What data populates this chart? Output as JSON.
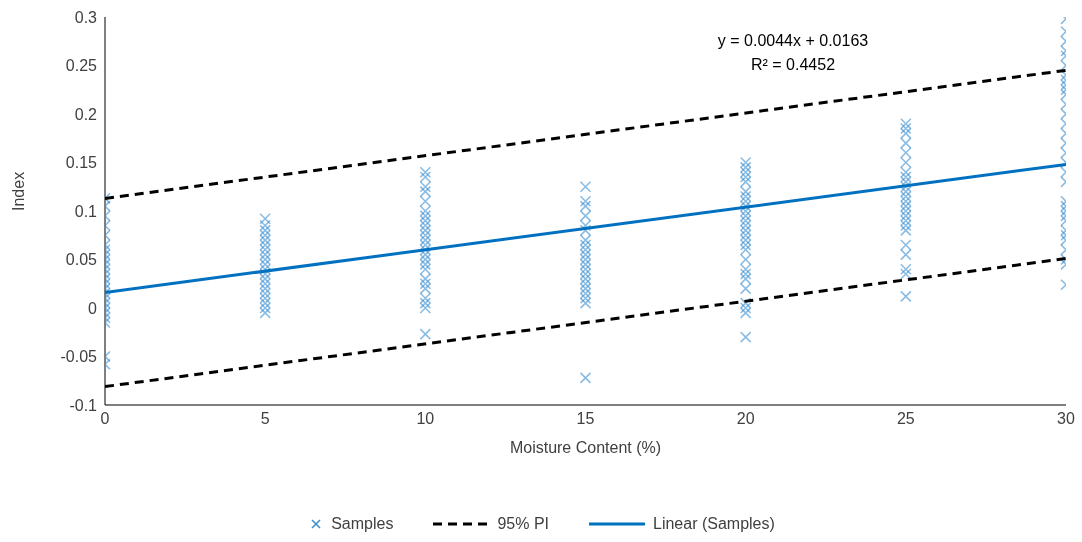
{
  "chart_data": {
    "type": "scatter",
    "xlabel": "Moisture Content (%)",
    "ylabel": "Index",
    "xlim": [
      0,
      30
    ],
    "xticks": [
      0,
      5,
      10,
      15,
      20,
      25,
      30
    ],
    "ylim": [
      -0.1,
      0.3
    ],
    "yticks": [
      -0.1,
      -0.05,
      0,
      0.05,
      0.1,
      0.15,
      0.2,
      0.25,
      0.3
    ],
    "grid": false,
    "legend": "bottom",
    "annotations": [
      "y = 0.0044x + 0.0163",
      "R² = 0.4452"
    ],
    "series": [
      {
        "name": "Samples",
        "marker": "cross",
        "color": "#3d8fd1",
        "x": [
          0,
          0,
          0,
          0,
          0,
          0,
          0,
          0,
          0,
          0,
          0,
          0,
          0,
          0,
          0,
          0,
          0,
          0,
          0,
          0,
          0,
          0,
          0,
          0,
          5,
          5,
          5,
          5,
          5,
          5,
          5,
          5,
          5,
          5,
          5,
          5,
          5,
          5,
          5,
          5,
          5,
          5,
          5,
          5,
          10,
          10,
          10,
          10,
          10,
          10,
          10,
          10,
          10,
          10,
          10,
          10,
          10,
          10,
          10,
          10,
          10,
          10,
          10,
          10,
          10,
          10,
          10,
          10,
          10,
          15,
          15,
          15,
          15,
          15,
          15,
          15,
          15,
          15,
          15,
          15,
          15,
          15,
          15,
          15,
          15,
          15,
          15,
          15,
          15,
          15,
          20,
          20,
          20,
          20,
          20,
          20,
          20,
          20,
          20,
          20,
          20,
          20,
          20,
          20,
          20,
          20,
          20,
          20,
          20,
          20,
          20,
          20,
          20,
          20,
          20,
          20,
          20,
          25,
          25,
          25,
          25,
          25,
          25,
          25,
          25,
          25,
          25,
          25,
          25,
          25,
          25,
          25,
          25,
          25,
          25,
          25,
          25,
          25,
          25,
          25,
          25,
          30,
          30,
          30,
          30,
          30,
          30,
          30,
          30,
          30,
          30,
          30,
          30,
          30,
          30,
          30,
          30,
          30,
          30,
          30,
          30,
          30,
          30,
          30,
          30,
          30,
          30,
          30,
          30,
          30,
          30,
          30,
          30
        ],
        "values": [
          0.113,
          0.105,
          0.095,
          0.085,
          0.075,
          0.065,
          0.06,
          0.055,
          0.05,
          0.045,
          0.04,
          0.035,
          0.03,
          0.025,
          0.02,
          0.015,
          0.01,
          0.005,
          0,
          -0.005,
          -0.01,
          -0.015,
          -0.05,
          -0.058,
          0.092,
          0.085,
          0.08,
          0.075,
          0.07,
          0.065,
          0.06,
          0.055,
          0.05,
          0.045,
          0.04,
          0.035,
          0.03,
          0.025,
          0.02,
          0.015,
          0.01,
          0.005,
          0,
          -0.005,
          0.14,
          0.135,
          0.125,
          0.12,
          0.11,
          0.1,
          0.095,
          0.09,
          0.085,
          0.08,
          0.075,
          0.07,
          0.065,
          0.06,
          0.055,
          0.05,
          0.045,
          0.04,
          0.03,
          0.025,
          0.02,
          0.01,
          0.005,
          0,
          -0.027,
          0.125,
          0.11,
          0.105,
          0.095,
          0.085,
          0.08,
          0.07,
          0.065,
          0.06,
          0.055,
          0.05,
          0.045,
          0.04,
          0.035,
          0.03,
          0.025,
          0.02,
          0.015,
          0.01,
          0.005,
          -0.072,
          0.15,
          0.145,
          0.14,
          0.135,
          0.13,
          0.12,
          0.115,
          0.11,
          0.105,
          0.1,
          0.095,
          0.09,
          0.085,
          0.08,
          0.075,
          0.07,
          0.065,
          0.06,
          0.05,
          0.04,
          0.035,
          0.03,
          0.02,
          0.005,
          0,
          -0.005,
          -0.03,
          0.19,
          0.185,
          0.18,
          0.17,
          0.16,
          0.15,
          0.14,
          0.135,
          0.13,
          0.125,
          0.12,
          0.115,
          0.11,
          0.105,
          0.1,
          0.095,
          0.09,
          0.085,
          0.08,
          0.065,
          0.055,
          0.04,
          0.035,
          0.012,
          0.298,
          0.285,
          0.275,
          0.265,
          0.26,
          0.25,
          0.24,
          0.235,
          0.23,
          0.225,
          0.22,
          0.21,
          0.2,
          0.19,
          0.18,
          0.17,
          0.16,
          0.15,
          0.14,
          0.13,
          0.11,
          0.105,
          0.1,
          0.095,
          0.09,
          0.08,
          0.075,
          0.07,
          0.06,
          0.05,
          0.045,
          0.024
        ]
      },
      {
        "name": "95% PI",
        "type": "line",
        "marker": "none",
        "color": "#000000",
        "line_style": "dashed",
        "x": [
          0,
          30
        ],
        "values": [
          0.113,
          0.245
        ]
      },
      {
        "type": "line",
        "marker": "none",
        "color": "#000000",
        "line_style": "dashed",
        "x": [
          0,
          30
        ],
        "values": [
          -0.081,
          0.051
        ]
      },
      {
        "name": "Linear (Samples)",
        "type": "line",
        "marker": "none",
        "color": "#0070c0",
        "line_style": "solid",
        "x": [
          0,
          30
        ],
        "values": [
          0.016,
          0.148
        ]
      }
    ]
  }
}
